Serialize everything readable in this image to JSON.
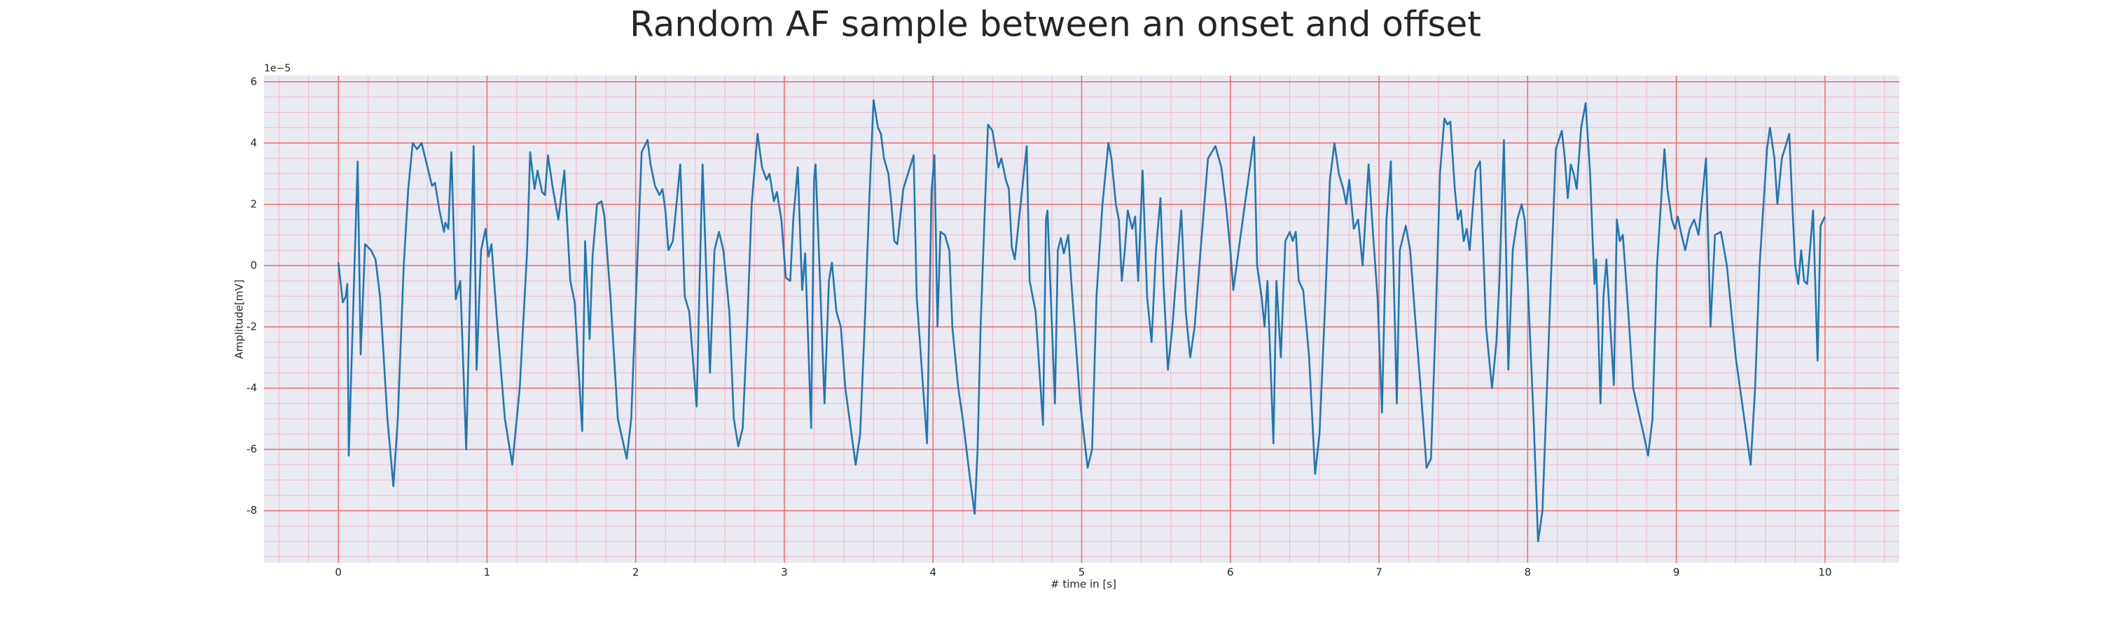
{
  "chart_data": {
    "type": "line",
    "title": "Random AF sample between an onset and offset",
    "xlabel": "# time in [s]",
    "ylabel": "Amplitude[mV]",
    "y_offset_text": "1e−5",
    "color": "#1f77b4",
    "background": "#eaeaf2",
    "grid": true,
    "grid_color": "#f06a6a",
    "minor_grid_color": "#f4b8c4",
    "xlim": [
      -0.5,
      10.5
    ],
    "ylim": [
      -9.7,
      6.2
    ],
    "xticks": [
      0,
      1,
      2,
      3,
      4,
      5,
      6,
      7,
      8,
      9,
      10
    ],
    "yticks": [
      -8,
      -6,
      -4,
      -2,
      0,
      2,
      4,
      6
    ],
    "xminor": [
      -0.4,
      -0.2,
      0.2,
      0.4,
      0.6,
      0.8,
      1.2,
      1.4,
      1.6,
      1.8,
      2.2,
      2.4,
      2.6,
      2.8,
      3.2,
      3.4,
      3.6,
      3.8,
      4.2,
      4.4,
      4.6,
      4.8,
      5.2,
      5.4,
      5.6,
      5.8,
      6.2,
      6.4,
      6.6,
      6.8,
      7.2,
      7.4,
      7.6,
      7.8,
      8.2,
      8.4,
      8.6,
      8.8,
      9.2,
      9.4,
      9.6,
      9.8,
      10.2,
      10.4
    ],
    "yminor": [
      -9.5,
      -9,
      -8.5,
      -7.5,
      -7,
      -6.5,
      -5.5,
      -5,
      -4.5,
      -3.5,
      -3,
      -2.5,
      -1.5,
      -1,
      -0.5,
      0.5,
      1,
      1.5,
      2.5,
      3,
      3.5,
      4.5,
      5,
      5.5
    ],
    "x": [
      0,
      0.03,
      0.05,
      0.06,
      0.07,
      0.13,
      0.15,
      0.18,
      0.22,
      0.25,
      0.28,
      0.33,
      0.37,
      0.4,
      0.44,
      0.47,
      0.5,
      0.53,
      0.56,
      0.59,
      0.63,
      0.65,
      0.68,
      0.71,
      0.72,
      0.74,
      0.76,
      0.79,
      0.82,
      0.86,
      0.91,
      0.93,
      0.96,
      0.99,
      1.01,
      1.03,
      1.07,
      1.12,
      1.17,
      1.22,
      1.27,
      1.29,
      1.32,
      1.34,
      1.37,
      1.39,
      1.41,
      1.44,
      1.48,
      1.52,
      1.56,
      1.59,
      1.64,
      1.66,
      1.69,
      1.71,
      1.74,
      1.77,
      1.79,
      1.83,
      1.88,
      1.94,
      1.97,
      2.01,
      2.04,
      2.08,
      2.1,
      2.13,
      2.16,
      2.18,
      2.2,
      2.22,
      2.25,
      2.3,
      2.33,
      2.36,
      2.41,
      2.44,
      2.45,
      2.48,
      2.5,
      2.53,
      2.56,
      2.59,
      2.63,
      2.66,
      2.69,
      2.72,
      2.75,
      2.78,
      2.82,
      2.85,
      2.88,
      2.9,
      2.93,
      2.95,
      2.98,
      3.01,
      3.04,
      3.06,
      3.09,
      3.12,
      3.14,
      3.18,
      3.2,
      3.21,
      3.24,
      3.27,
      3.3,
      3.32,
      3.35,
      3.38,
      3.41,
      3.48,
      3.51,
      3.54,
      3.57,
      3.6,
      3.63,
      3.65,
      3.67,
      3.7,
      3.72,
      3.74,
      3.76,
      3.8,
      3.87,
      3.89,
      3.96,
      3.99,
      4.01,
      4.03,
      4.05,
      4.08,
      4.11,
      4.13,
      4.17,
      4.2,
      4.25,
      4.28,
      4.3,
      4.32,
      4.35,
      4.37,
      4.4,
      4.44,
      4.46,
      4.49,
      4.51,
      4.53,
      4.55,
      4.63,
      4.65,
      4.69,
      4.74,
      4.76,
      4.77,
      4.82,
      4.84,
      4.86,
      4.88,
      4.91,
      4.93,
      4.99,
      5.04,
      5.07,
      5.1,
      5.14,
      5.18,
      5.2,
      5.23,
      5.25,
      5.27,
      5.29,
      5.31,
      5.34,
      5.36,
      5.38,
      5.41,
      5.44,
      5.47,
      5.5,
      5.53,
      5.55,
      5.58,
      5.61,
      5.67,
      5.7,
      5.73,
      5.76,
      5.8,
      5.85,
      5.9,
      5.94,
      5.97,
      6.0,
      6.02,
      6.07,
      6.16,
      6.18,
      6.21,
      6.23,
      6.25,
      6.29,
      6.31,
      6.34,
      6.37,
      6.4,
      6.42,
      6.44,
      6.46,
      6.49,
      6.53,
      6.57,
      6.6,
      6.64,
      6.67,
      6.7,
      6.73,
      6.76,
      6.78,
      6.8,
      6.83,
      6.86,
      6.89,
      6.93,
      6.96,
      6.99,
      7.02,
      7.05,
      7.08,
      7.12,
      7.14,
      7.18,
      7.21,
      7.24,
      7.28,
      7.32,
      7.35,
      7.38,
      7.41,
      7.44,
      7.46,
      7.48,
      7.51,
      7.53,
      7.55,
      7.57,
      7.59,
      7.61,
      7.65,
      7.68,
      7.72,
      7.76,
      7.79,
      7.81,
      7.84,
      7.87,
      7.9,
      7.93,
      7.96,
      7.98,
      8.0,
      8.04,
      8.07,
      8.1,
      8.13,
      8.16,
      8.19,
      8.23,
      8.25,
      8.27,
      8.29,
      8.31,
      8.33,
      8.36,
      8.39,
      8.42,
      8.44,
      8.45,
      8.46,
      8.49,
      8.51,
      8.53,
      8.55,
      8.58,
      8.6,
      8.62,
      8.64,
      8.67,
      8.71,
      8.78,
      8.81,
      8.84,
      8.87,
      8.92,
      8.94,
      8.97,
      8.99,
      9.01,
      9.03,
      9.06,
      9.09,
      9.12,
      9.15,
      9.2,
      9.23,
      9.26,
      9.3,
      9.34,
      9.4,
      9.5,
      9.53,
      9.56,
      9.61,
      9.63,
      9.66,
      9.68,
      9.71,
      9.76,
      9.78,
      9.8,
      9.82,
      9.84,
      9.86,
      9.88,
      9.92,
      9.95,
      9.97,
      10.0
    ],
    "values": [
      0.1,
      -1.2,
      -1.0,
      -0.6,
      -6.2,
      3.4,
      -2.9,
      0.7,
      0.5,
      0.2,
      -1,
      -5,
      -7.2,
      -5,
      0,
      2.5,
      4.0,
      3.8,
      4.0,
      3.4,
      2.6,
      2.7,
      1.8,
      1.1,
      1.4,
      1.2,
      3.7,
      -1.1,
      -0.5,
      -6.0,
      3.9,
      -3.4,
      0.5,
      1.2,
      0.3,
      0.7,
      -2,
      -5,
      -6.5,
      -4,
      0.5,
      3.7,
      2.5,
      3.1,
      2.4,
      2.3,
      3.6,
      2.6,
      1.5,
      3.1,
      -0.5,
      -1.2,
      -5.4,
      0.8,
      -2.4,
      0.3,
      2.0,
      2.1,
      1.6,
      -1,
      -5,
      -6.3,
      -5,
      0,
      3.7,
      4.1,
      3.3,
      2.6,
      2.3,
      2.5,
      1.8,
      0.5,
      0.8,
      3.3,
      -1,
      -1.5,
      -4.6,
      1.5,
      3.3,
      -1,
      -3.5,
      0.5,
      1.1,
      0.5,
      -1.5,
      -5.0,
      -5.9,
      -5.3,
      -2,
      2,
      4.3,
      3.2,
      2.8,
      3.0,
      2.1,
      2.4,
      1.5,
      -0.4,
      -0.5,
      1.5,
      3.2,
      -0.8,
      0.4,
      -5.3,
      2.8,
      3.3,
      -0.5,
      -4.5,
      -0.5,
      0.1,
      -1.5,
      -2,
      -4,
      -6.5,
      -5.5,
      -2,
      2,
      5.4,
      4.5,
      4.3,
      3.5,
      3.0,
      2.0,
      0.8,
      0.7,
      2.5,
      3.6,
      -1,
      -5.8,
      2.4,
      3.6,
      -2,
      1.1,
      1.0,
      0.5,
      -2,
      -4,
      -5,
      -7,
      -8.1,
      -6,
      -2,
      2,
      4.6,
      4.4,
      3.2,
      3.5,
      2.8,
      2.5,
      0.6,
      0.2,
      3.9,
      -0.5,
      -1.5,
      -5.2,
      1.5,
      1.8,
      -4.5,
      0.5,
      0.9,
      0.4,
      1.0,
      -0.5,
      -4.5,
      -6.6,
      -6,
      -1,
      2,
      4.0,
      3.5,
      2,
      1.5,
      -0.5,
      0.5,
      1.8,
      1.2,
      1.6,
      -0.5,
      3.1,
      -1,
      -2.5,
      0.5,
      2.2,
      -0.5,
      -3.4,
      -2,
      1.8,
      -1.5,
      -3,
      -2,
      0.5,
      3.5,
      3.9,
      3.2,
      2,
      0.5,
      -0.8,
      1,
      4.2,
      0,
      -1,
      -2,
      -0.5,
      -5.8,
      -0.5,
      -3,
      0.8,
      1.1,
      0.8,
      1.1,
      -0.5,
      -0.8,
      -3,
      -6.8,
      -5.5,
      -1,
      2.8,
      4.0,
      3.0,
      2.5,
      2.0,
      2.8,
      1.2,
      1.5,
      0,
      3.3,
      1.0,
      -1,
      -4.8,
      1.5,
      3.4,
      -4.5,
      0.5,
      1.3,
      0.5,
      -1.5,
      -4,
      -6.6,
      -6.3,
      -2,
      3,
      4.8,
      4.6,
      4.7,
      2.5,
      1.5,
      1.8,
      0.8,
      1.2,
      0.5,
      3.1,
      3.4,
      -2,
      -4,
      -2.5,
      -0.5,
      4.1,
      -3.4,
      0.5,
      1.5,
      2.0,
      1.5,
      -0.5,
      -5,
      -9.0,
      -8,
      -4,
      0,
      3.8,
      4.4,
      3.5,
      2.2,
      3.3,
      3.0,
      2.5,
      4.5,
      5.3,
      3,
      0.5,
      -0.6,
      0.2,
      -4.5,
      -1,
      0.2,
      -1.5,
      -3.9,
      1.5,
      0.8,
      1.0,
      -1,
      -4,
      -5.5,
      -6.2,
      -5,
      0,
      3.8,
      2.5,
      1.5,
      1.2,
      1.6,
      1.1,
      0.5,
      1.2,
      1.5,
      1.0,
      3.5,
      -2,
      1.0,
      1.1,
      0,
      -3,
      -6.5,
      -4,
      0,
      3.8,
      4.5,
      3.5,
      2,
      3.5,
      4.3,
      2,
      0,
      -0.6,
      0.5,
      -0.5,
      -0.6,
      1.8,
      -3.1,
      1.3,
      1.6
    ]
  }
}
